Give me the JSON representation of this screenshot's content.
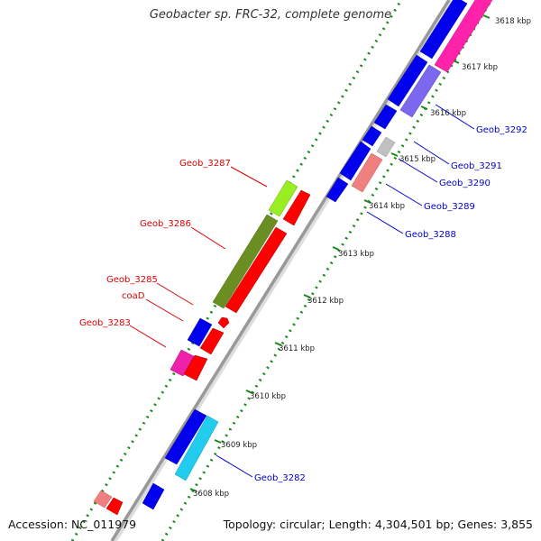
{
  "title": "Geobacter sp. FRC-32, complete genome",
  "accession": "Accession: NC_011979",
  "summary": "Topology: circular; Length: 4,304,501 bp; Genes: 3,855",
  "colors": {
    "backbone": "#999999",
    "dot_ruler": "#1a8a1a",
    "tick": "#1a8a1a",
    "label_forward": "#dd0000",
    "label_reverse": "#0000cc"
  },
  "ticks": [
    {
      "label": "3608 kbp"
    },
    {
      "label": "3609 kbp"
    },
    {
      "label": "3610 kbp"
    },
    {
      "label": "3611 kbp"
    },
    {
      "label": "3612 kbp"
    },
    {
      "label": "3613 kbp"
    },
    {
      "label": "3614 kbp"
    },
    {
      "label": "3615 kbp"
    },
    {
      "label": "3616 kbp"
    },
    {
      "label": "3617 kbp"
    },
    {
      "label": "3618 kbp"
    }
  ],
  "genes": [
    {
      "name": "Geob_3287",
      "color": "#99ee22"
    },
    {
      "name": "Geob_3286",
      "color": "#6b8e23"
    },
    {
      "name": "Geob_3285",
      "color": "#0000ee"
    },
    {
      "name": "coaD",
      "color": "#ff0000"
    },
    {
      "name": "Geob_3283",
      "color": "#ee22aa"
    },
    {
      "name": "Geob_3292",
      "color": "#7b68ee"
    },
    {
      "name": "Geob_3291",
      "color": "#0000ee"
    },
    {
      "name": "Geob_3290",
      "color": "#c0c0c0"
    },
    {
      "name": "Geob_3289",
      "color": "#f08080"
    },
    {
      "name": "Geob_3288",
      "color": "#0000ee"
    },
    {
      "name": "Geob_3282",
      "color": "#22ccee"
    }
  ]
}
